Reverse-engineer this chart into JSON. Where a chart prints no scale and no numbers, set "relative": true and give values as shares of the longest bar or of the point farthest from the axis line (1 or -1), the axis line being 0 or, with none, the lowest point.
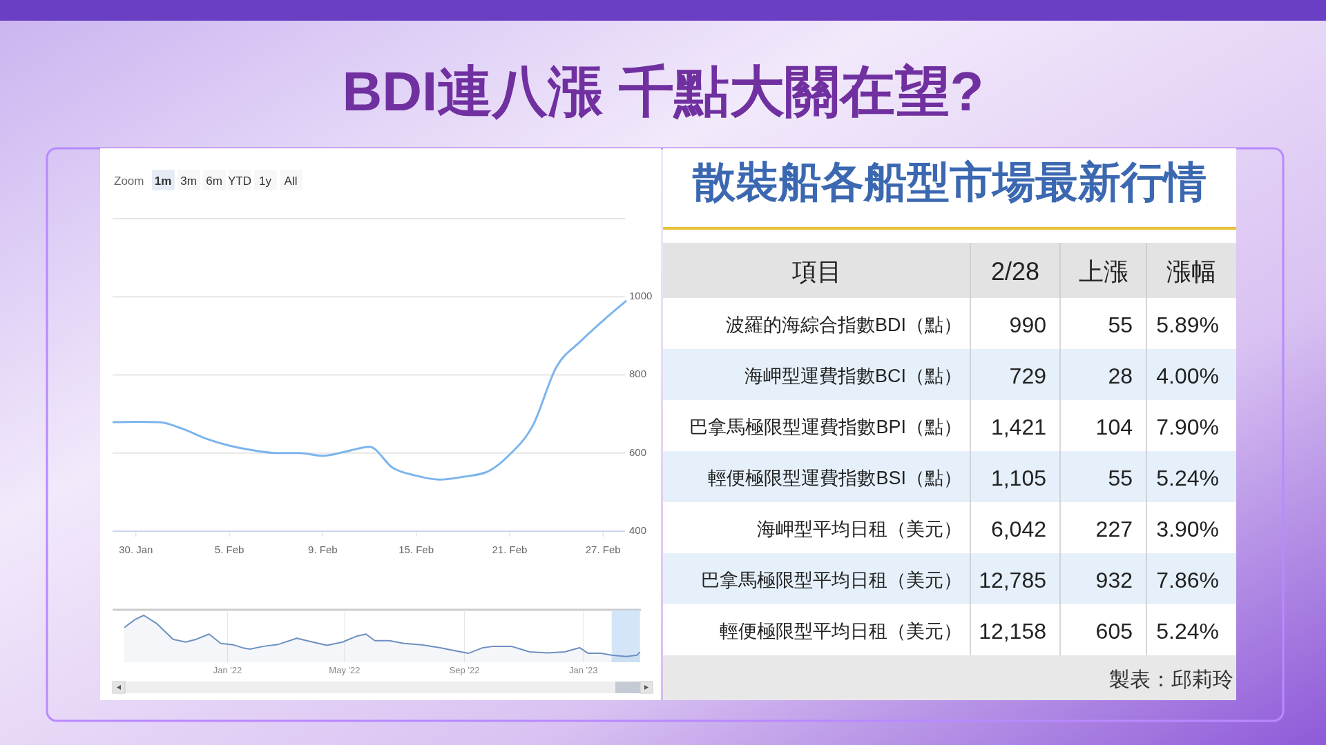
{
  "chart_data": [
    {
      "type": "line",
      "title": "BDI連八漲 千點大關在望?",
      "annotations": [
        "Zoom",
        "1m",
        "3m",
        "6m",
        "YTD",
        "1y",
        "All"
      ],
      "categories": [
        null,
        "30. Jan",
        null,
        null,
        null,
        "5. Feb",
        null,
        null,
        null,
        "9. Feb",
        null,
        null,
        null,
        "15. Feb",
        null,
        null,
        null,
        "21. Feb",
        null,
        null,
        null,
        "27. Feb",
        null
      ],
      "series": [
        {
          "color": "#7cb5ec",
          "values": [
            679,
            680,
            679,
            662,
            637,
            619,
            607,
            600,
            600,
            593,
            604,
            616,
            562,
            542,
            532,
            539,
            551,
            596,
            671,
            820,
            884,
            939,
            990
          ]
        }
      ],
      "ylim": [
        400,
        1200
      ],
      "yticks": [
        400,
        600,
        800,
        1000,
        {
          "value": 1200,
          "label": null
        }
      ],
      "grid": "y",
      "marker": "none"
    },
    {
      "type": "area",
      "relative": true,
      "x": [
        "2021-09-17",
        "2021-09-28",
        "2021-10-07",
        "2021-10-20",
        "2021-11-06",
        "2021-11-19",
        "2021-11-30",
        "2021-12-13",
        "2021-12-25",
        "2022-01-07",
        "2022-01-16",
        "2022-01-24",
        "2022-02-07",
        "2022-02-22",
        "2022-03-13",
        "2022-03-27",
        "2022-04-13",
        "2022-04-29",
        "2022-05-14",
        "2022-05-23",
        "2022-06-01",
        "2022-06-16",
        "2022-07-01",
        "2022-07-19",
        "2022-08-07",
        "2022-08-21",
        "2022-09-05",
        "2022-09-20",
        "2022-10-01",
        "2022-10-19",
        "2022-11-07",
        "2022-11-25",
        "2022-12-13",
        "2022-12-28",
        "2023-01-06",
        "2023-01-19",
        "2023-01-30",
        "2023-02-14",
        "2023-02-25",
        "2023-02-28"
      ],
      "series": [
        {
          "color": "#6d90bf",
          "values": [
            0.74,
            0.91,
            1,
            0.83,
            0.49,
            0.43,
            0.49,
            0.6,
            0.4,
            0.37,
            0.31,
            0.28,
            0.34,
            0.38,
            0.51,
            0.44,
            0.36,
            0.43,
            0.56,
            0.6,
            0.46,
            0.46,
            0.4,
            0.37,
            0.31,
            0.25,
            0.19,
            0.31,
            0.34,
            0.34,
            0.22,
            0.2,
            0.22,
            0.31,
            0.19,
            0.19,
            0.15,
            0.12,
            0.15,
            0.22
          ]
        }
      ],
      "xlim": [
        "2021-09-05",
        "2023-03-01"
      ],
      "xticks": [
        {
          "value": "2022-01-01",
          "label": "Jan '22"
        },
        {
          "value": "2022-05-01",
          "label": "May '22"
        },
        {
          "value": "2022-09-01",
          "label": "Sep '22"
        },
        {
          "value": "2023-01-01",
          "label": "Jan '23"
        }
      ],
      "grid": "x",
      "bands": [
        {
          "axis": "x",
          "from": "2023-01-30",
          "to": "2023-02-28",
          "color": "#c9def5"
        }
      ]
    },
    {
      "type": "other",
      "title": "散裝船各船型市場最新行情",
      "categories": [
        "項目",
        "2/28",
        "上漲",
        "漲幅"
      ],
      "y_categories": [
        "波羅的海綜合指數BDI（點）",
        "海岬型運費指數BCI（點）",
        "巴拿馬極限型運費指數BPI（點）",
        "輕便極限型運費指數BSI（點）",
        "海岬型平均日租（美元）",
        "巴拿馬極限型平均日租（美元）",
        "輕便極限型平均日租（美元）"
      ],
      "cell_labels": [
        [
          "990",
          "55",
          "5.89%"
        ],
        [
          "729",
          "28",
          "4.00%"
        ],
        [
          "1,421",
          "104",
          "7.90%"
        ],
        [
          "1,105",
          "55",
          "5.24%"
        ],
        [
          "6,042",
          "227",
          "3.90%"
        ],
        [
          "12,785",
          "932",
          "7.86%"
        ],
        [
          "12,158",
          "605",
          "5.24%"
        ]
      ],
      "annotations": [
        "製表：邱莉玲"
      ]
    }
  ]
}
